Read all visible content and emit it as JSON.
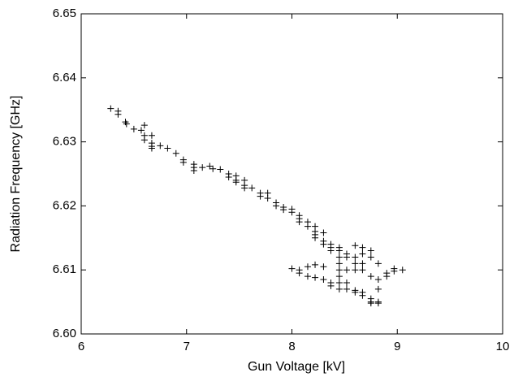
{
  "chart_data": {
    "type": "scatter",
    "xlabel": "Gun Voltage [kV]",
    "ylabel": "Radiation Frequency [GHz]",
    "marker": "+",
    "color": "#000000",
    "xlim": [
      6,
      10
    ],
    "xticks": [
      6,
      7,
      8,
      9,
      10
    ],
    "ylim": [
      6.6,
      6.65
    ],
    "yticks": [
      {
        "value": 6.6,
        "label": "6.60"
      },
      6.61,
      6.62,
      6.63,
      6.64,
      6.65
    ],
    "x": [
      6.28,
      6.35,
      6.35,
      6.42,
      6.43,
      6.5,
      6.57,
      6.6,
      6.6,
      6.6,
      6.67,
      6.67,
      6.67,
      6.67,
      6.75,
      6.82,
      6.9,
      6.97,
      6.97,
      7.07,
      7.07,
      7.07,
      7.15,
      7.22,
      7.25,
      7.32,
      7.4,
      7.4,
      7.47,
      7.47,
      7.47,
      7.55,
      7.55,
      7.55,
      7.62,
      7.7,
      7.7,
      7.77,
      7.77,
      7.85,
      7.85,
      7.92,
      7.92,
      8.0,
      8.0,
      8.07,
      8.07,
      8.07,
      8.15,
      8.15,
      8.22,
      8.22,
      8.22,
      8.22,
      8.3,
      8.3,
      8.3,
      8.37,
      8.37,
      8.37,
      8.0,
      8.07,
      8.07,
      8.15,
      8.15,
      8.22,
      8.22,
      8.3,
      8.3,
      8.37,
      8.37,
      8.45,
      8.45,
      8.45,
      8.45,
      8.45,
      8.45,
      8.45,
      8.45,
      8.52,
      8.52,
      8.52,
      8.52,
      8.52,
      8.6,
      8.6,
      8.6,
      8.6,
      8.6,
      8.6,
      8.67,
      8.67,
      8.67,
      8.67,
      8.67,
      8.67,
      8.75,
      8.75,
      8.75,
      8.75,
      8.75,
      8.75,
      8.82,
      8.82,
      8.82,
      8.82,
      8.82,
      8.9,
      8.9,
      8.97,
      8.97,
      9.05
    ],
    "y": [
      6.6352,
      6.6348,
      6.6343,
      6.6331,
      6.6328,
      6.632,
      6.6318,
      6.6326,
      6.631,
      6.6303,
      6.631,
      6.6298,
      6.6293,
      6.629,
      6.6294,
      6.629,
      6.6282,
      6.6272,
      6.6268,
      6.6265,
      6.626,
      6.6255,
      6.626,
      6.6262,
      6.6258,
      6.6257,
      6.625,
      6.6245,
      6.6247,
      6.624,
      6.6237,
      6.624,
      6.6232,
      6.6228,
      6.6228,
      6.622,
      6.6215,
      6.622,
      6.6212,
      6.6205,
      6.62,
      6.6198,
      6.6194,
      6.6195,
      6.619,
      6.6185,
      6.618,
      6.6175,
      6.6175,
      6.6168,
      6.6168,
      6.616,
      6.6155,
      6.615,
      6.6158,
      6.6145,
      6.614,
      6.614,
      6.6135,
      6.613,
      6.6102,
      6.61,
      6.6095,
      6.6105,
      6.609,
      6.6108,
      6.6088,
      6.6105,
      6.6085,
      6.608,
      6.6075,
      6.6135,
      6.613,
      6.612,
      6.611,
      6.61,
      6.609,
      6.608,
      6.607,
      6.6125,
      6.612,
      6.61,
      6.608,
      6.607,
      6.6138,
      6.612,
      6.611,
      6.61,
      6.6068,
      6.6065,
      6.6135,
      6.6125,
      6.611,
      6.61,
      6.6065,
      6.606,
      6.613,
      6.612,
      6.609,
      6.6055,
      6.605,
      6.6048,
      6.611,
      6.6085,
      6.607,
      6.605,
      6.6048,
      6.6095,
      6.609,
      6.6102,
      6.6098,
      6.61
    ]
  }
}
